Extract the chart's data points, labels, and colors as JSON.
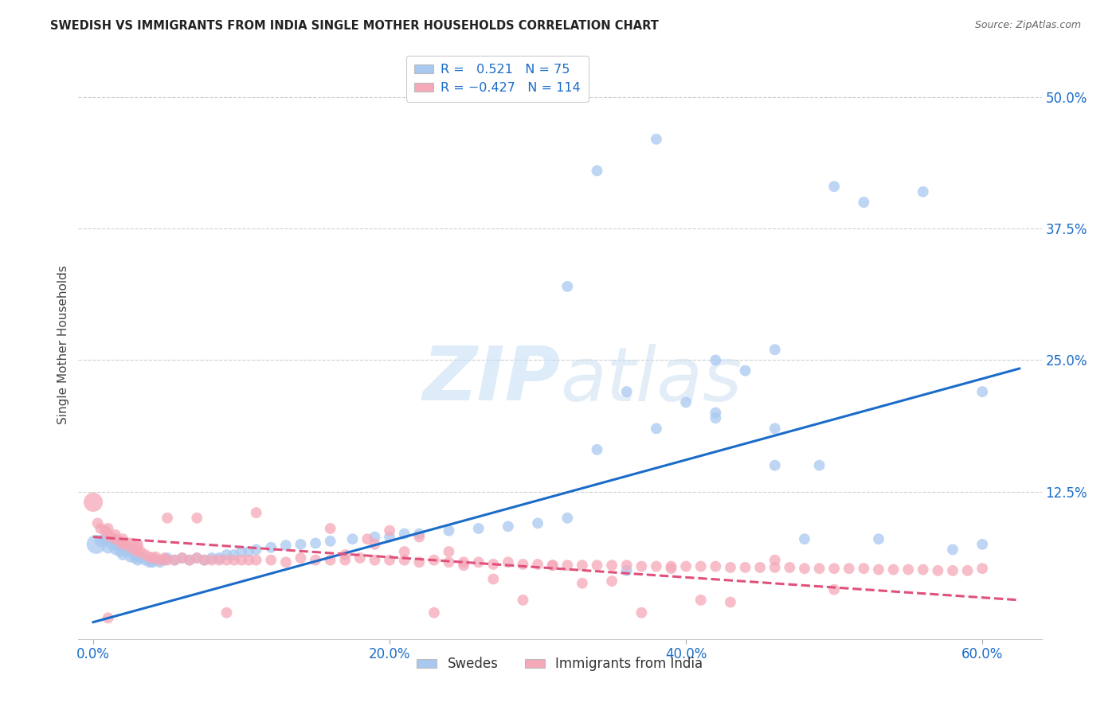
{
  "title": "SWEDISH VS IMMIGRANTS FROM INDIA SINGLE MOTHER HOUSEHOLDS CORRELATION CHART",
  "source": "Source: ZipAtlas.com",
  "ylabel": "Single Mother Households",
  "ytick_labels": [
    "12.5%",
    "25.0%",
    "37.5%",
    "50.0%"
  ],
  "ytick_vals": [
    0.125,
    0.25,
    0.375,
    0.5
  ],
  "xtick_vals": [
    0.0,
    0.2,
    0.4,
    0.6
  ],
  "xlim": [
    -0.01,
    0.64
  ],
  "ylim": [
    -0.015,
    0.545
  ],
  "swede_color": "#a8c8f0",
  "india_color": "#f5a8b8",
  "swede_line_color": "#1a6cc8",
  "india_line_color": "#e0507a",
  "swede_x": [
    0.002,
    0.005,
    0.008,
    0.01,
    0.012,
    0.015,
    0.015,
    0.018,
    0.02,
    0.02,
    0.022,
    0.025,
    0.025,
    0.028,
    0.03,
    0.03,
    0.032,
    0.035,
    0.038,
    0.04,
    0.042,
    0.045,
    0.048,
    0.05,
    0.055,
    0.06,
    0.065,
    0.07,
    0.075,
    0.08,
    0.085,
    0.09,
    0.095,
    0.1,
    0.105,
    0.11,
    0.12,
    0.13,
    0.14,
    0.15,
    0.16,
    0.175,
    0.19,
    0.2,
    0.21,
    0.22,
    0.24,
    0.26,
    0.28,
    0.3,
    0.32,
    0.34,
    0.36,
    0.38,
    0.4,
    0.42,
    0.44,
    0.46,
    0.48,
    0.5,
    0.34,
    0.38,
    0.42,
    0.46,
    0.52,
    0.56,
    0.58,
    0.6,
    0.32,
    0.36,
    0.42,
    0.46,
    0.49,
    0.53,
    0.6
  ],
  "swede_y": [
    0.075,
    0.078,
    0.08,
    0.072,
    0.076,
    0.07,
    0.074,
    0.068,
    0.065,
    0.072,
    0.068,
    0.063,
    0.068,
    0.062,
    0.06,
    0.065,
    0.062,
    0.06,
    0.058,
    0.058,
    0.06,
    0.058,
    0.06,
    0.062,
    0.06,
    0.062,
    0.06,
    0.062,
    0.06,
    0.062,
    0.062,
    0.065,
    0.065,
    0.068,
    0.068,
    0.07,
    0.072,
    0.074,
    0.075,
    0.076,
    0.078,
    0.08,
    0.082,
    0.082,
    0.085,
    0.085,
    0.088,
    0.09,
    0.092,
    0.095,
    0.1,
    0.165,
    0.05,
    0.185,
    0.21,
    0.2,
    0.24,
    0.15,
    0.08,
    0.415,
    0.43,
    0.46,
    0.25,
    0.26,
    0.4,
    0.41,
    0.07,
    0.22,
    0.32,
    0.22,
    0.195,
    0.185,
    0.15,
    0.08,
    0.075
  ],
  "swede_size": [
    300,
    120,
    120,
    120,
    120,
    100,
    100,
    100,
    100,
    100,
    100,
    100,
    100,
    100,
    100,
    100,
    100,
    100,
    100,
    100,
    100,
    100,
    100,
    100,
    100,
    100,
    100,
    100,
    100,
    100,
    100,
    100,
    100,
    100,
    100,
    100,
    100,
    100,
    100,
    100,
    100,
    100,
    100,
    100,
    100,
    100,
    100,
    100,
    100,
    100,
    100,
    100,
    100,
    100,
    100,
    100,
    100,
    100,
    100,
    100,
    100,
    100,
    100,
    100,
    100,
    100,
    100,
    100,
    100,
    100,
    100,
    100,
    100,
    100,
    100
  ],
  "india_x": [
    0.0,
    0.003,
    0.005,
    0.008,
    0.01,
    0.01,
    0.012,
    0.015,
    0.015,
    0.018,
    0.02,
    0.02,
    0.022,
    0.025,
    0.025,
    0.028,
    0.03,
    0.03,
    0.032,
    0.035,
    0.038,
    0.04,
    0.042,
    0.045,
    0.048,
    0.05,
    0.055,
    0.06,
    0.065,
    0.07,
    0.075,
    0.08,
    0.085,
    0.09,
    0.095,
    0.1,
    0.105,
    0.11,
    0.12,
    0.13,
    0.14,
    0.15,
    0.16,
    0.17,
    0.18,
    0.19,
    0.2,
    0.21,
    0.22,
    0.23,
    0.24,
    0.25,
    0.26,
    0.27,
    0.28,
    0.29,
    0.3,
    0.31,
    0.32,
    0.33,
    0.34,
    0.35,
    0.36,
    0.37,
    0.38,
    0.39,
    0.4,
    0.41,
    0.42,
    0.43,
    0.44,
    0.45,
    0.46,
    0.47,
    0.48,
    0.49,
    0.5,
    0.51,
    0.52,
    0.53,
    0.54,
    0.55,
    0.56,
    0.57,
    0.58,
    0.59,
    0.6,
    0.16,
    0.185,
    0.2,
    0.22,
    0.24,
    0.01,
    0.03,
    0.05,
    0.07,
    0.09,
    0.11,
    0.17,
    0.19,
    0.21,
    0.23,
    0.25,
    0.27,
    0.29,
    0.31,
    0.33,
    0.35,
    0.37,
    0.39,
    0.41,
    0.43,
    0.46,
    0.5
  ],
  "india_y": [
    0.115,
    0.095,
    0.09,
    0.088,
    0.085,
    0.09,
    0.082,
    0.08,
    0.084,
    0.078,
    0.075,
    0.08,
    0.076,
    0.072,
    0.076,
    0.07,
    0.068,
    0.072,
    0.068,
    0.065,
    0.063,
    0.062,
    0.063,
    0.06,
    0.062,
    0.06,
    0.06,
    0.062,
    0.06,
    0.062,
    0.06,
    0.06,
    0.06,
    0.06,
    0.06,
    0.06,
    0.06,
    0.06,
    0.06,
    0.058,
    0.062,
    0.06,
    0.06,
    0.06,
    0.062,
    0.06,
    0.06,
    0.06,
    0.058,
    0.06,
    0.058,
    0.058,
    0.058,
    0.056,
    0.058,
    0.056,
    0.056,
    0.055,
    0.055,
    0.055,
    0.055,
    0.055,
    0.055,
    0.054,
    0.054,
    0.054,
    0.054,
    0.054,
    0.054,
    0.053,
    0.053,
    0.053,
    0.053,
    0.053,
    0.052,
    0.052,
    0.052,
    0.052,
    0.052,
    0.051,
    0.051,
    0.051,
    0.051,
    0.05,
    0.05,
    0.05,
    0.052,
    0.09,
    0.08,
    0.088,
    0.082,
    0.068,
    0.005,
    0.075,
    0.1,
    0.1,
    0.01,
    0.105,
    0.065,
    0.075,
    0.068,
    0.01,
    0.055,
    0.042,
    0.022,
    0.055,
    0.038,
    0.04,
    0.01,
    0.052,
    0.022,
    0.02,
    0.06,
    0.032
  ],
  "india_size": [
    300,
    100,
    100,
    100,
    100,
    100,
    100,
    100,
    100,
    100,
    100,
    100,
    100,
    100,
    100,
    100,
    100,
    100,
    100,
    100,
    100,
    100,
    100,
    100,
    100,
    100,
    100,
    100,
    100,
    100,
    100,
    100,
    100,
    100,
    100,
    100,
    100,
    100,
    100,
    100,
    100,
    100,
    100,
    100,
    100,
    100,
    100,
    100,
    100,
    100,
    100,
    100,
    100,
    100,
    100,
    100,
    100,
    100,
    100,
    100,
    100,
    100,
    100,
    100,
    100,
    100,
    100,
    100,
    100,
    100,
    100,
    100,
    100,
    100,
    100,
    100,
    100,
    100,
    100,
    100,
    100,
    100,
    100,
    100,
    100,
    100,
    100,
    100,
    100,
    100,
    100,
    100,
    100,
    100,
    100,
    100,
    100,
    100,
    100,
    100,
    100,
    100,
    100,
    100,
    100,
    100,
    100,
    100,
    100,
    100,
    100,
    100,
    100,
    100
  ],
  "blue_line_x": [
    0.0,
    0.625
  ],
  "blue_line_y": [
    0.001,
    0.242
  ],
  "pink_line_x": [
    0.0,
    0.625
  ],
  "pink_line_y": [
    0.082,
    0.022
  ],
  "watermark_zip": "ZIP",
  "watermark_atlas": "atlas",
  "background_color": "#ffffff",
  "grid_color": "#d0d0d0"
}
